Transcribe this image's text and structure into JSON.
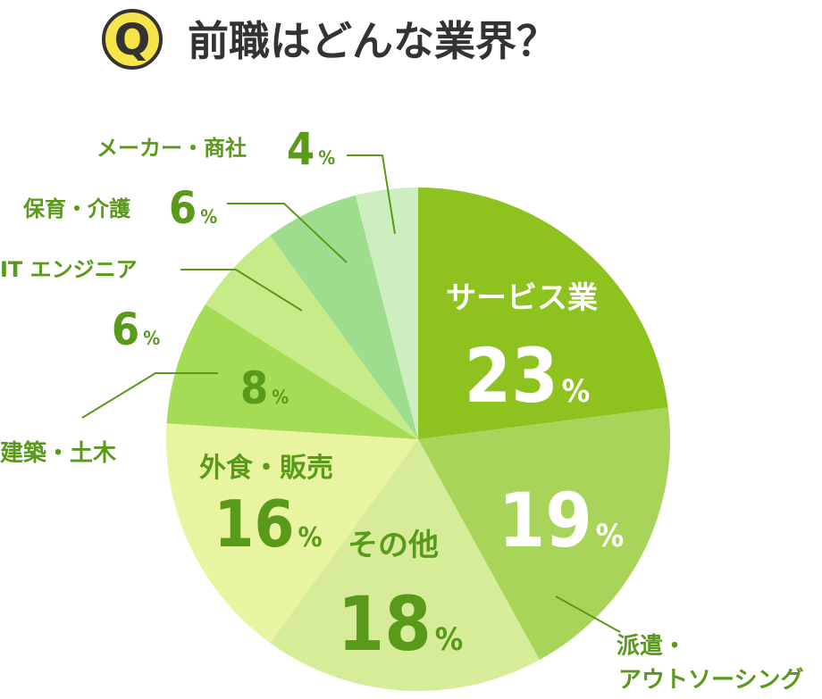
{
  "title": {
    "badge": "Q",
    "text": "前職はどんな業界？"
  },
  "colors": {
    "title": "#333333",
    "badge_fill": "#f7e34a",
    "badge_stroke": "#333333",
    "badge_letter": "#333333",
    "label_dark": "#5a9a1a",
    "label_white": "#ffffff",
    "leader": "#5a9a1a"
  },
  "chart_data": {
    "type": "pie",
    "unit": "%",
    "start": "12 o'clock",
    "direction": "clockwise",
    "slices": [
      {
        "label": "サービス業",
        "value": 23,
        "color": "#8dc21f"
      },
      {
        "label": "派遣・アウトソーシング",
        "value": 19,
        "color": "#a9d45a"
      },
      {
        "label": "その他",
        "value": 18,
        "color": "#d6ec98"
      },
      {
        "label": "外食・販売",
        "value": 16,
        "color": "#e9f4a0"
      },
      {
        "label": "建築・土木",
        "value": 8,
        "color": "#a5dc55"
      },
      {
        "label": "IT エンジニア",
        "value": 6,
        "color": "#c8eb8a"
      },
      {
        "label": "保育・介護",
        "value": 6,
        "color": "#9edd8e"
      },
      {
        "label": "メーカー・商社",
        "value": 4,
        "color": "#cdefc0"
      }
    ]
  }
}
